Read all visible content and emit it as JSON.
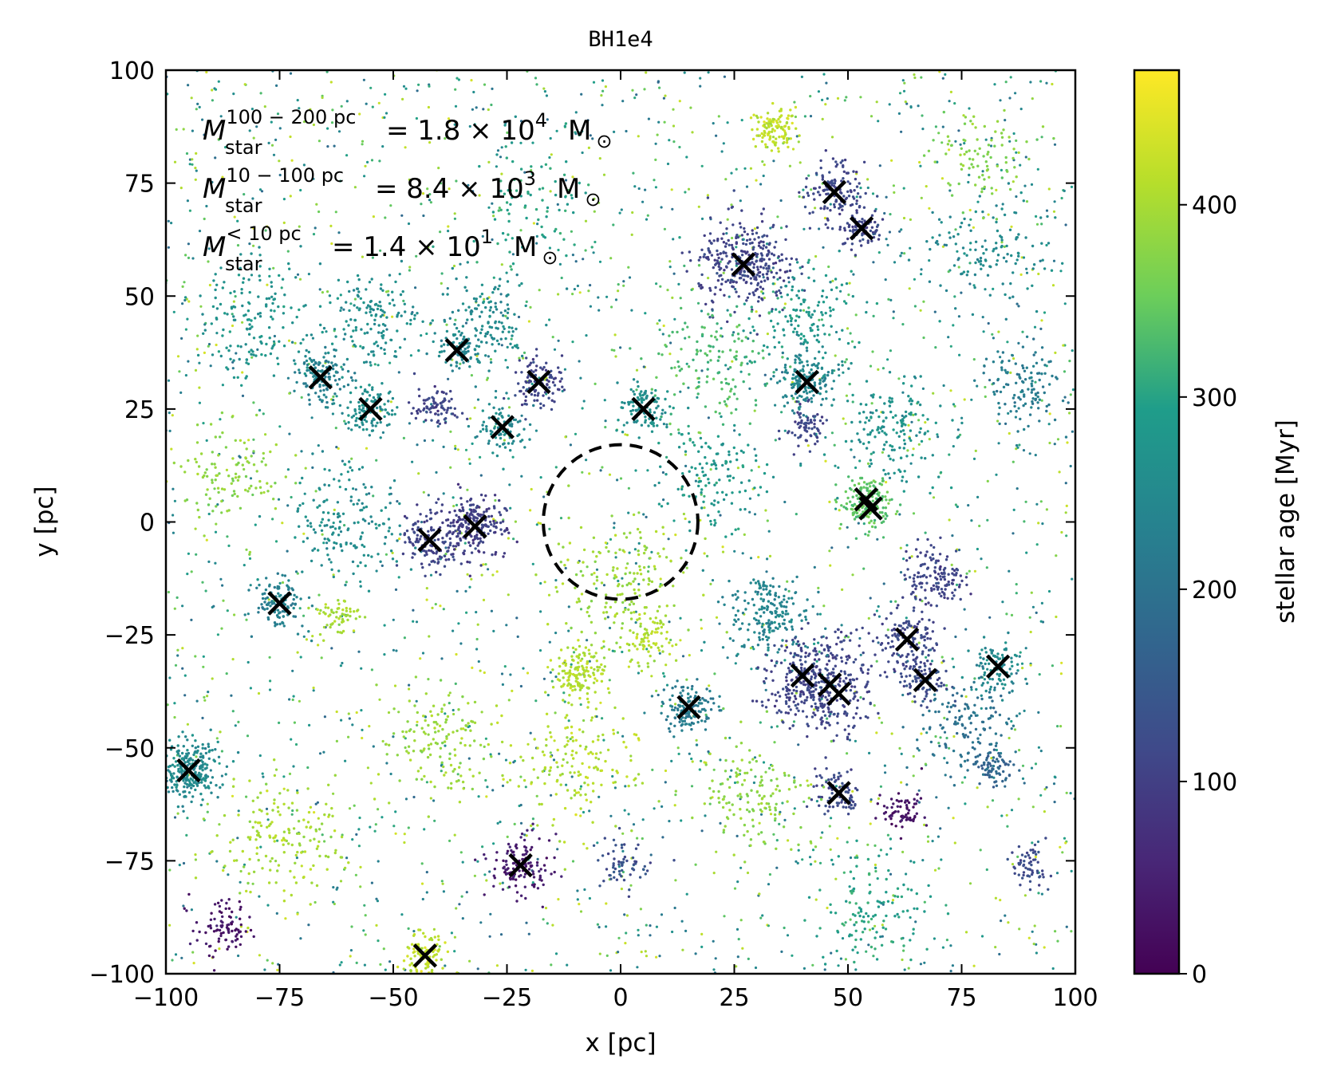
{
  "chart_data": {
    "type": "scatter",
    "title": "BH1e4",
    "xlabel": "x [pc]",
    "ylabel": "y [pc]",
    "xlim": [
      -100,
      100
    ],
    "ylim": [
      -100,
      100
    ],
    "xticks": [
      -100,
      -75,
      -50,
      -25,
      0,
      25,
      50,
      75,
      100
    ],
    "yticks": [
      -100,
      -75,
      -50,
      -25,
      0,
      25,
      50,
      75,
      100
    ],
    "xtick_labels": [
      "−100",
      "−75",
      "−50",
      "−25",
      "0",
      "25",
      "50",
      "75",
      "100"
    ],
    "ytick_labels": [
      "−100",
      "−75",
      "−50",
      "−25",
      "0",
      "25",
      "50",
      "75",
      "100"
    ],
    "colorbar": {
      "label": "stellar age [Myr]",
      "range": [
        0,
        470
      ],
      "ticks": [
        0,
        100,
        200,
        300,
        400
      ],
      "tick_labels": [
        "0",
        "100",
        "200",
        "300",
        "400"
      ],
      "colormap": [
        "#440154",
        "#482777",
        "#3f4a8a",
        "#31678e",
        "#26838f",
        "#1f9d8a",
        "#6cce5a",
        "#b6de2b",
        "#fee825"
      ]
    },
    "annotations": {
      "line1": {
        "sym": "M",
        "sup": "100 − 200 pc",
        "sub": "star",
        "rhs": "= 1.8 × 10",
        "exp": "4",
        "unit": "M",
        "sun": "⊙"
      },
      "line2": {
        "sym": "M",
        "sup": "10 − 100 pc",
        "sub": "star",
        "rhs": "= 8.4 × 10",
        "exp": "3",
        "unit": "M",
        "sun": "⊙"
      },
      "line3": {
        "sym": "M",
        "sup": "< 10 pc",
        "sub": "star",
        "rhs": "= 1.4 × 10",
        "exp": "1",
        "unit": "M",
        "sun": "⊙"
      }
    },
    "circle": {
      "center": [
        0,
        0
      ],
      "radius": 17,
      "style": "dashed"
    },
    "cluster_markers": [
      [
        -95,
        -55
      ],
      [
        -75,
        -18
      ],
      [
        -66,
        32
      ],
      [
        -55,
        25
      ],
      [
        -42,
        -4
      ],
      [
        -36,
        38
      ],
      [
        -32,
        -1
      ],
      [
        -26,
        21
      ],
      [
        -18,
        31
      ],
      [
        5,
        25
      ],
      [
        15,
        -41
      ],
      [
        27,
        57
      ],
      [
        41,
        31
      ],
      [
        40,
        -34
      ],
      [
        46,
        -36
      ],
      [
        47,
        73
      ],
      [
        48,
        -38
      ],
      [
        48,
        -60
      ],
      [
        53,
        65
      ],
      [
        54,
        5
      ],
      [
        55,
        3
      ],
      [
        63,
        -26
      ],
      [
        67,
        -35
      ],
      [
        83,
        -32
      ],
      [
        -43,
        -96
      ],
      [
        -22,
        -76
      ]
    ],
    "star_clumps": [
      {
        "x": -95,
        "y": -55,
        "r": 6,
        "age": 250,
        "n": 260
      },
      {
        "x": -75,
        "y": -18,
        "r": 5,
        "age": 230,
        "n": 120
      },
      {
        "x": -66,
        "y": 32,
        "r": 5,
        "age": 230,
        "n": 130
      },
      {
        "x": -55,
        "y": 25,
        "r": 5,
        "age": 260,
        "n": 110
      },
      {
        "x": -42,
        "y": -4,
        "r": 6,
        "age": 110,
        "n": 150
      },
      {
        "x": -36,
        "y": 38,
        "r": 4,
        "age": 240,
        "n": 70
      },
      {
        "x": -32,
        "y": -1,
        "r": 6,
        "age": 100,
        "n": 210
      },
      {
        "x": -26,
        "y": 21,
        "r": 5,
        "age": 250,
        "n": 90
      },
      {
        "x": -18,
        "y": 31,
        "r": 5,
        "age": 110,
        "n": 110
      },
      {
        "x": -41,
        "y": 25,
        "r": 4,
        "age": 110,
        "n": 80
      },
      {
        "x": 5,
        "y": 25,
        "r": 5,
        "age": 260,
        "n": 110
      },
      {
        "x": 15,
        "y": -41,
        "r": 5,
        "age": 220,
        "n": 140
      },
      {
        "x": 27,
        "y": 57,
        "r": 9,
        "age": 110,
        "n": 320
      },
      {
        "x": 41,
        "y": 31,
        "r": 6,
        "age": 240,
        "n": 170
      },
      {
        "x": 41,
        "y": 21,
        "r": 4,
        "age": 110,
        "n": 70
      },
      {
        "x": 44,
        "y": -36,
        "r": 10,
        "age": 110,
        "n": 420
      },
      {
        "x": 47,
        "y": 73,
        "r": 6,
        "age": 110,
        "n": 130
      },
      {
        "x": 48,
        "y": -60,
        "r": 5,
        "age": 120,
        "n": 90
      },
      {
        "x": 53,
        "y": 65,
        "r": 4,
        "age": 110,
        "n": 80
      },
      {
        "x": 54,
        "y": 4,
        "r": 5,
        "age": 340,
        "n": 160
      },
      {
        "x": 63,
        "y": -26,
        "r": 6,
        "age": 110,
        "n": 130
      },
      {
        "x": 67,
        "y": -35,
        "r": 5,
        "age": 120,
        "n": 90
      },
      {
        "x": 69,
        "y": -12,
        "r": 6,
        "age": 110,
        "n": 140
      },
      {
        "x": 83,
        "y": -32,
        "r": 5,
        "age": 250,
        "n": 100
      },
      {
        "x": 82,
        "y": -55,
        "r": 4,
        "age": 170,
        "n": 70
      },
      {
        "x": -43,
        "y": -96,
        "r": 4,
        "age": 420,
        "n": 90
      },
      {
        "x": -22,
        "y": -76,
        "r": 6,
        "age": 40,
        "n": 130
      },
      {
        "x": 62,
        "y": -64,
        "r": 4,
        "age": 30,
        "n": 70
      },
      {
        "x": -88,
        "y": -90,
        "r": 6,
        "age": 30,
        "n": 90
      },
      {
        "x": 34,
        "y": 87,
        "r": 4,
        "age": 420,
        "n": 110
      },
      {
        "x": -9,
        "y": -33,
        "r": 5,
        "age": 410,
        "n": 140
      },
      {
        "x": 0,
        "y": -14,
        "r": 14,
        "age": 390,
        "n": 170
      },
      {
        "x": 5,
        "y": -26,
        "r": 5,
        "age": 410,
        "n": 70
      },
      {
        "x": 33,
        "y": -20,
        "r": 8,
        "age": 240,
        "n": 190
      },
      {
        "x": -62,
        "y": -21,
        "r": 4,
        "age": 400,
        "n": 60
      },
      {
        "x": 90,
        "y": -76,
        "r": 4,
        "age": 120,
        "n": 60
      },
      {
        "x": 0,
        "y": -76,
        "r": 6,
        "age": 130,
        "n": 60
      },
      {
        "x": 88,
        "y": 30,
        "r": 8,
        "age": 220,
        "n": 120
      },
      {
        "x": -80,
        "y": 45,
        "r": 12,
        "age": 270,
        "n": 160
      },
      {
        "x": -55,
        "y": 45,
        "r": 10,
        "age": 260,
        "n": 150
      },
      {
        "x": -30,
        "y": 45,
        "r": 10,
        "age": 250,
        "n": 140
      },
      {
        "x": 40,
        "y": 45,
        "r": 10,
        "age": 280,
        "n": 140
      },
      {
        "x": 60,
        "y": 20,
        "r": 10,
        "age": 270,
        "n": 150
      },
      {
        "x": 20,
        "y": 10,
        "r": 10,
        "age": 280,
        "n": 130
      },
      {
        "x": -60,
        "y": 0,
        "r": 12,
        "age": 260,
        "n": 160
      },
      {
        "x": 75,
        "y": -45,
        "r": 10,
        "age": 200,
        "n": 140
      },
      {
        "x": -10,
        "y": -55,
        "r": 12,
        "age": 410,
        "n": 140
      },
      {
        "x": 30,
        "y": -60,
        "r": 12,
        "age": 380,
        "n": 140
      },
      {
        "x": -75,
        "y": -70,
        "r": 12,
        "age": 400,
        "n": 160
      },
      {
        "x": -40,
        "y": -50,
        "r": 12,
        "age": 390,
        "n": 140
      },
      {
        "x": 55,
        "y": -85,
        "r": 12,
        "age": 300,
        "n": 120
      },
      {
        "x": -85,
        "y": 10,
        "r": 10,
        "age": 380,
        "n": 110
      },
      {
        "x": 20,
        "y": 35,
        "r": 12,
        "age": 330,
        "n": 130
      },
      {
        "x": 80,
        "y": 60,
        "r": 12,
        "age": 250,
        "n": 130
      },
      {
        "x": 80,
        "y": 80,
        "r": 10,
        "age": 370,
        "n": 90
      },
      {
        "x": -20,
        "y": 70,
        "r": 14,
        "age": 300,
        "n": 90
      }
    ],
    "field_stars": {
      "n": 2600,
      "age_range": [
        180,
        440
      ]
    }
  }
}
